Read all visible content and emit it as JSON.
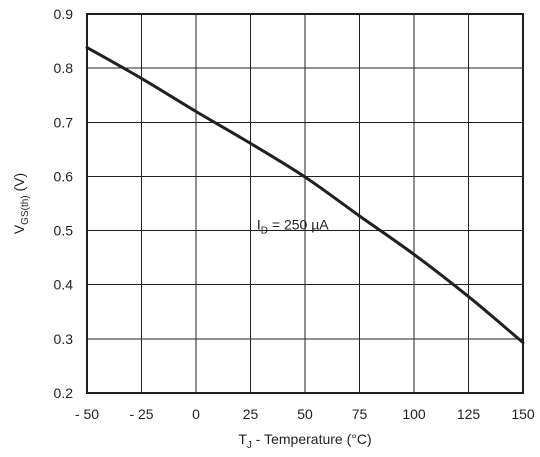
{
  "chart_data": {
    "type": "line",
    "xlabel": {
      "main": "T",
      "sub": "J",
      "rest": " - Temperature (°C)"
    },
    "ylabel": {
      "main": "V",
      "sub": "GS(th)",
      "rest": " (V)"
    },
    "xlim": [
      -50,
      150
    ],
    "ylim": [
      0.2,
      0.9
    ],
    "x_ticks": [
      "- 50",
      "- 25",
      "0",
      "25",
      "50",
      "75",
      "100",
      "125",
      "150"
    ],
    "x_tick_values": [
      -50,
      -25,
      0,
      25,
      50,
      75,
      100,
      125,
      150
    ],
    "y_ticks": [
      "0.2",
      "0.3",
      "0.4",
      "0.5",
      "0.6",
      "0.7",
      "0.8",
      "0.9"
    ],
    "y_tick_values": [
      0.2,
      0.3,
      0.4,
      0.5,
      0.6,
      0.7,
      0.8,
      0.9
    ],
    "grid": true,
    "series": [
      {
        "x": [
          -50,
          -25,
          0,
          25,
          50,
          75,
          100,
          125,
          150
        ],
        "y": [
          0.838,
          0.781,
          0.72,
          0.661,
          0.599,
          0.527,
          0.456,
          0.378,
          0.293
        ]
      }
    ],
    "annotation": {
      "main": "I",
      "sub": "D",
      "rest": " = 250 µA",
      "x": 27,
      "y": 0.515
    }
  }
}
